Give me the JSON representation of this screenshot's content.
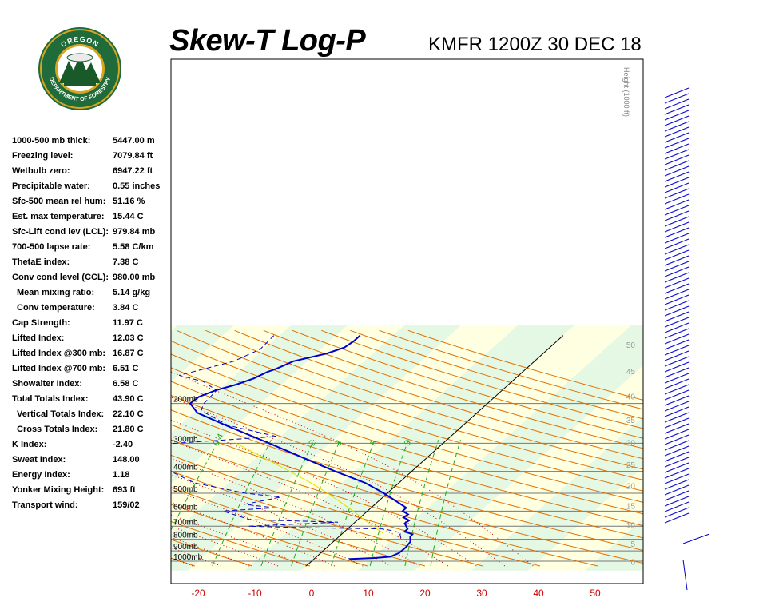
{
  "header": {
    "title": "Skew-T Log-P",
    "station": "KMFR 1200Z 30 DEC 18"
  },
  "logo": {
    "top_text": "OREGON",
    "bottom_text": "DEPARTMENT OF FORESTRY",
    "colors": {
      "ring": "#1f6b3a",
      "gold": "#d9a520",
      "tree": "#1a5a2a"
    }
  },
  "stats": [
    {
      "label": "1000-500 mb thick:",
      "value": "5447.00 m",
      "indent": false
    },
    {
      "label": "Freezing level:",
      "value": "7079.84 ft",
      "indent": false
    },
    {
      "label": "Wetbulb zero:",
      "value": "6947.22 ft",
      "indent": false
    },
    {
      "label": "Precipitable water:",
      "value": "0.55 inches",
      "indent": false
    },
    {
      "label": "Sfc-500 mean rel hum:",
      "value": "51.16 %",
      "indent": false
    },
    {
      "label": "Est. max temperature:",
      "value": "15.44 C",
      "indent": false
    },
    {
      "label": "Sfc-Lift cond lev (LCL):",
      "value": "979.84 mb",
      "indent": false
    },
    {
      "label": "700-500 lapse rate:",
      "value": "5.58 C/km",
      "indent": false
    },
    {
      "label": "ThetaE index:",
      "value": "7.38 C",
      "indent": false
    },
    {
      "label": "Conv cond level (CCL):",
      "value": "980.00 mb",
      "indent": false
    },
    {
      "label": "Mean mixing ratio:",
      "value": "5.14 g/kg",
      "indent": true
    },
    {
      "label": "Conv temperature:",
      "value": "3.84 C",
      "indent": true
    },
    {
      "label": "Cap Strength:",
      "value": "11.97 C",
      "indent": false
    },
    {
      "label": "Lifted Index:",
      "value": "12.03 C",
      "indent": false
    },
    {
      "label": "Lifted Index @300 mb:",
      "value": "16.87 C",
      "indent": false
    },
    {
      "label": "Lifted Index @700 mb:",
      "value": "6.51 C",
      "indent": false
    },
    {
      "label": "Showalter Index:",
      "value": "6.58 C",
      "indent": false
    },
    {
      "label": "Total Totals Index:",
      "value": "43.90 C",
      "indent": false
    },
    {
      "label": "Vertical Totals Index:",
      "value": "22.10 C",
      "indent": true
    },
    {
      "label": "Cross Totals Index:",
      "value": "21.80 C",
      "indent": true
    },
    {
      "label": "K Index:",
      "value": "-2.40",
      "indent": false
    },
    {
      "label": "Sweat Index:",
      "value": "148.00",
      "indent": false
    },
    {
      "label": "Energy Index:",
      "value": "1.18",
      "indent": false
    },
    {
      "label": "Yonker Mixing Height:",
      "value": "693 ft",
      "indent": false
    },
    {
      "label": "Transport wind:",
      "value": "159/02",
      "indent": false
    }
  ],
  "chart_data": {
    "type": "line",
    "title": "Skew-T Log-P",
    "x_axis": {
      "label": "",
      "range": [
        -23,
        60
      ],
      "ticks": [
        -20,
        -10,
        0,
        10,
        20,
        30,
        40,
        50
      ],
      "tick_color": "#cc0000"
    },
    "pressure_axis": {
      "range_mb": [
        1050,
        100
      ],
      "scale": "log",
      "labels": [
        {
          "p": 200,
          "text": "200mb"
        },
        {
          "p": 300,
          "text": "300mb"
        },
        {
          "p": 400,
          "text": "400mb"
        },
        {
          "p": 500,
          "text": "500mb"
        },
        {
          "p": 600,
          "text": "600mb"
        },
        {
          "p": 700,
          "text": "700mb"
        },
        {
          "p": 800,
          "text": "800mb"
        },
        {
          "p": 900,
          "text": "900mb"
        },
        {
          "p": 1000,
          "text": "1000mb"
        }
      ]
    },
    "height_axis": {
      "label": "Height (1000 ft)",
      "ticks": [
        {
          "kft": 0,
          "text": "0"
        },
        {
          "kft": 5,
          "text": "5"
        },
        {
          "kft": 10,
          "text": "10"
        },
        {
          "kft": 15,
          "text": "15"
        },
        {
          "kft": 20,
          "text": "20"
        },
        {
          "kft": 25,
          "text": "25"
        },
        {
          "kft": 30,
          "text": "30"
        },
        {
          "kft": 35,
          "text": "35"
        },
        {
          "kft": 40,
          "text": "40"
        },
        {
          "kft": 45,
          "text": "45"
        },
        {
          "kft": 50,
          "text": "50"
        }
      ]
    },
    "mixing_ratio_labels": [
      "0.4",
      "1",
      "2",
      "3",
      "5",
      "8"
    ],
    "series": [
      {
        "role": "temperature",
        "color": "#0000cc",
        "style": "solid",
        "points": [
          {
            "p": 987,
            "t": 6.8
          },
          {
            "p": 978,
            "t": 6.4
          },
          {
            "p": 968,
            "t": 10.5
          },
          {
            "p": 955,
            "t": 13.0
          },
          {
            "p": 920,
            "t": 13.8
          },
          {
            "p": 870,
            "t": 13.9
          },
          {
            "p": 820,
            "t": 13.6
          },
          {
            "p": 780,
            "t": 12.6
          },
          {
            "p": 760,
            "t": 12.5
          },
          {
            "p": 740,
            "t": 10.6
          },
          {
            "p": 720,
            "t": 10.6
          },
          {
            "p": 680,
            "t": 9.0
          },
          {
            "p": 660,
            "t": 9.2
          },
          {
            "p": 640,
            "t": 7.6
          },
          {
            "p": 620,
            "t": 7.8
          },
          {
            "p": 600,
            "t": 6.2
          },
          {
            "p": 580,
            "t": 6.2
          },
          {
            "p": 560,
            "t": 4.6
          },
          {
            "p": 500,
            "t": -0.6
          },
          {
            "p": 450,
            "t": -5.9
          },
          {
            "p": 400,
            "t": -13.5
          },
          {
            "p": 350,
            "t": -21.5
          },
          {
            "p": 300,
            "t": -30.7
          },
          {
            "p": 250,
            "t": -41.8
          },
          {
            "p": 220,
            "t": -49.3
          },
          {
            "p": 200,
            "t": -52.4
          },
          {
            "p": 187,
            "t": -52.2
          },
          {
            "p": 175,
            "t": -50.5
          },
          {
            "p": 165,
            "t": -48.0
          },
          {
            "p": 155,
            "t": -46.1
          },
          {
            "p": 145,
            "t": -45.0
          },
          {
            "p": 140,
            "t": -44.0
          },
          {
            "p": 130,
            "t": -42.5
          },
          {
            "p": 120,
            "t": -38.1
          },
          {
            "p": 113,
            "t": -36.2
          },
          {
            "p": 106,
            "t": -35.8
          },
          {
            "p": 100,
            "t": -35.8
          }
        ]
      },
      {
        "role": "dewpoint",
        "color": "#0000cc",
        "style": "dashed",
        "points": [
          {
            "p": 790,
            "t": 11.2
          },
          {
            "p": 760,
            "t": 10.3
          },
          {
            "p": 750,
            "t": 10.3
          },
          {
            "p": 720,
            "t": 6.5
          },
          {
            "p": 712,
            "t": -6.0
          },
          {
            "p": 700,
            "t": -18.0
          },
          {
            "p": 672,
            "t": -3.0
          },
          {
            "p": 655,
            "t": -19.0
          },
          {
            "p": 600,
            "t": -25.5
          },
          {
            "p": 580,
            "t": -17.0
          },
          {
            "p": 560,
            "t": -23.0
          },
          {
            "p": 520,
            "t": -18.0
          },
          {
            "p": 500,
            "t": -25.0
          },
          {
            "p": 450,
            "t": -36.0
          },
          {
            "p": 400,
            "t": -42.5
          },
          {
            "p": 350,
            "t": -48.0
          },
          {
            "p": 310,
            "t": -55.0
          },
          {
            "p": 300,
            "t": -47.0
          },
          {
            "p": 280,
            "t": -30.7
          },
          {
            "p": 250,
            "t": -41.4
          },
          {
            "p": 215,
            "t": -49.1
          },
          {
            "p": 200,
            "t": -50.0
          },
          {
            "p": 175,
            "t": -50.3
          },
          {
            "p": 160,
            "t": -54.4
          },
          {
            "p": 150,
            "t": -59.9
          },
          {
            "p": 145,
            "t": -58.2
          },
          {
            "p": 130,
            "t": -53.0
          },
          {
            "p": 115,
            "t": -50.7
          },
          {
            "p": 100,
            "t": -51.0
          }
        ]
      },
      {
        "role": "parcel",
        "color": "#e0e000",
        "style": "solid",
        "points": [
          {
            "p": 750,
            "t": 7.0
          },
          {
            "p": 700,
            "t": 4.0
          },
          {
            "p": 650,
            "t": 0.8
          },
          {
            "p": 600,
            "t": -2.5
          },
          {
            "p": 550,
            "t": -6.3
          },
          {
            "p": 500,
            "t": -10.5
          },
          {
            "p": 450,
            "t": -15.5
          },
          {
            "p": 400,
            "t": -21.5
          },
          {
            "p": 350,
            "t": -28.5
          },
          {
            "p": 300,
            "t": -36.5
          }
        ]
      }
    ],
    "wind_barbs_color": "#0000cc",
    "background_colors": {
      "yellow_band": "#ffffe2",
      "green_band": "#e4f8e4"
    }
  }
}
